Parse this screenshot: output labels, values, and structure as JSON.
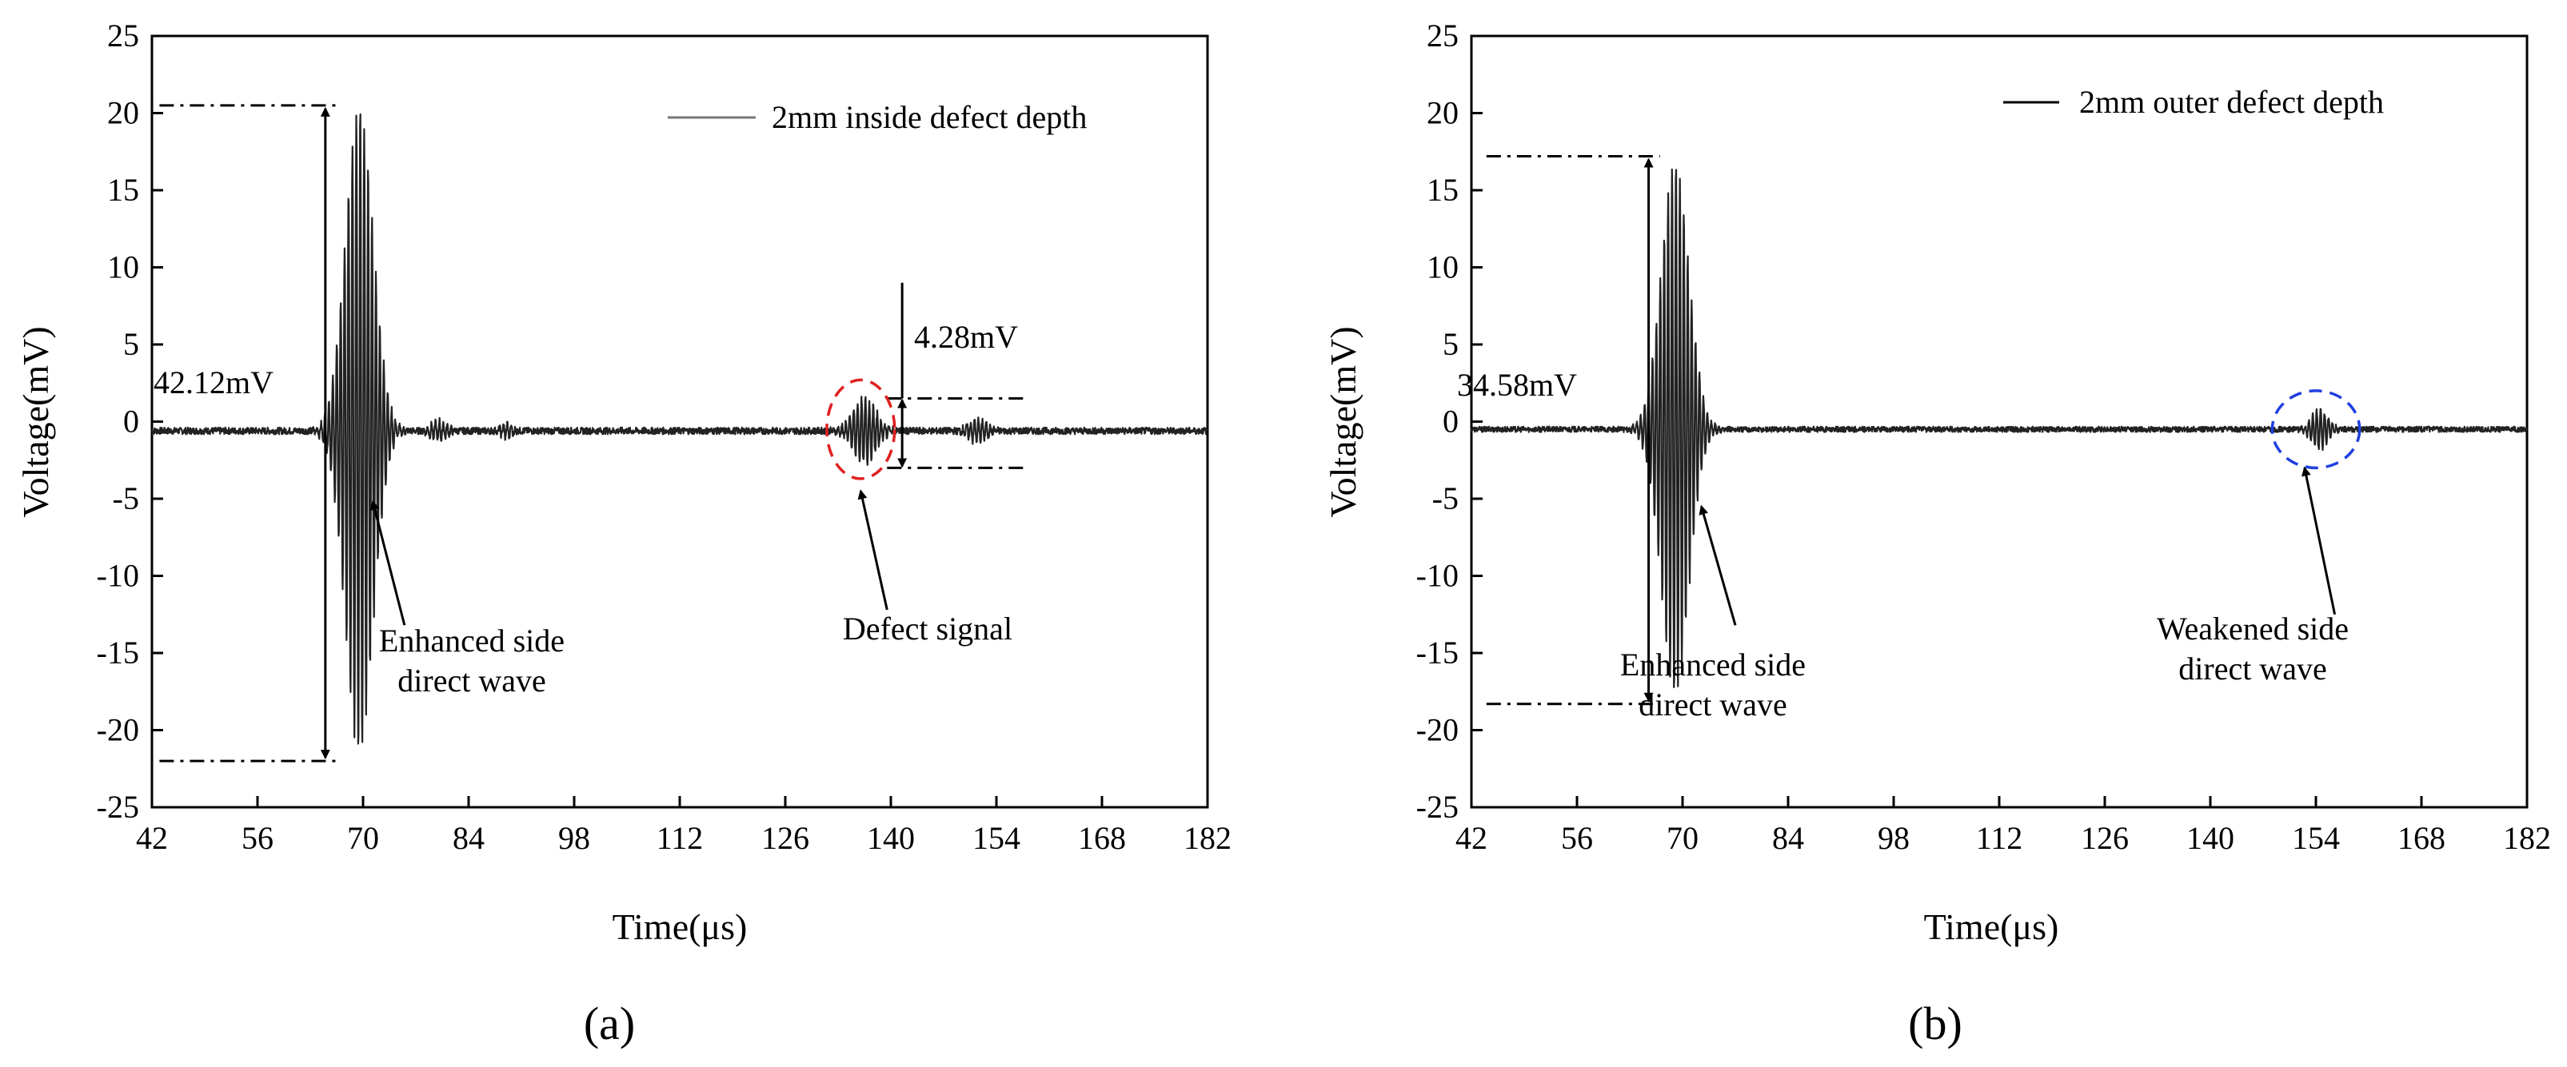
{
  "figure": {
    "panels": [
      {
        "label": "(a)"
      },
      {
        "label": "(b)"
      }
    ]
  },
  "chart_data": [
    {
      "type": "line",
      "panel": "(a)",
      "xlabel": "Time(μs)",
      "ylabel": "Voltage(mV)",
      "xlim": [
        42,
        182
      ],
      "ylim": [
        -25,
        25
      ],
      "xticks": [
        42,
        56,
        70,
        84,
        98,
        112,
        126,
        140,
        154,
        168,
        182
      ],
      "yticks": [
        25,
        20,
        15,
        10,
        5,
        0,
        -5,
        -10,
        -15,
        -20,
        -25
      ],
      "legend": {
        "label": "2mm inside defect depth",
        "position": "top-right"
      },
      "series": [
        {
          "name": "2mm inside defect depth",
          "color": "#222222",
          "baseline": -0.6,
          "noise": 0.22,
          "packets": [
            {
              "center": 69.5,
              "width": 2.6,
              "amplitude": 21.0,
              "period": 0.52
            },
            {
              "center": 80.0,
              "width": 1.4,
              "amplitude": 0.7,
              "period": 0.52
            },
            {
              "center": 89.0,
              "width": 1.0,
              "amplitude": 0.5,
              "period": 0.52
            },
            {
              "center": 136.5,
              "width": 2.2,
              "amplitude": 2.1,
              "period": 0.52
            },
            {
              "center": 151.5,
              "width": 1.6,
              "amplitude": 0.8,
              "period": 0.52
            }
          ]
        }
      ],
      "annotations": {
        "peak_to_peak": {
          "text": "42.12mV",
          "top": 20.5,
          "bottom": -22.0,
          "x_start": 43.0,
          "x_end": 66.5,
          "arrow_x": 65.0
        },
        "defect_amplitude": {
          "text": "4.28mV",
          "top": 1.5,
          "bottom": -3.0,
          "x_start": 139.5,
          "x_end": 158.0,
          "arrow_x": 141.5,
          "bar_top": 9.0
        },
        "circle": {
          "cx": 136.0,
          "cy": -0.5,
          "rx": 4.5,
          "ry": 3.2,
          "color": "#e02020"
        },
        "arrows": [
          {
            "text_lines": [
              "Enhanced side",
              "direct wave"
            ],
            "from": [
              75.5,
              -13.2
            ],
            "to": [
              71.3,
              -5.2
            ]
          },
          {
            "text_lines": [
              "Defect signal"
            ],
            "from": [
              139.5,
              -12.2
            ],
            "to": [
              136.0,
              -4.5
            ]
          }
        ]
      }
    },
    {
      "type": "line",
      "panel": "(b)",
      "xlabel": "Time(μs)",
      "ylabel": "Voltage(mV)",
      "xlim": [
        42,
        182
      ],
      "ylim": [
        -25,
        25
      ],
      "xticks": [
        42,
        56,
        70,
        84,
        98,
        112,
        126,
        140,
        154,
        168,
        182
      ],
      "yticks": [
        25,
        20,
        15,
        10,
        5,
        0,
        -5,
        -10,
        -15,
        -20,
        -25
      ],
      "legend": {
        "label": "2mm outer defect depth",
        "position": "top-right"
      },
      "series": [
        {
          "name": "2mm outer defect depth",
          "color": "#222222",
          "baseline": -0.5,
          "noise": 0.18,
          "packets": [
            {
              "center": 69.0,
              "width": 2.6,
              "amplitude": 17.2,
              "period": 0.52
            },
            {
              "center": 154.5,
              "width": 1.6,
              "amplitude": 1.3,
              "period": 0.52
            }
          ]
        }
      ],
      "annotations": {
        "peak_to_peak": {
          "text": "34.58mV",
          "top": 17.2,
          "bottom": -18.3,
          "x_start": 44.0,
          "x_end": 67.0,
          "arrow_x": 65.5
        },
        "circle": {
          "cx": 154.0,
          "cy": -0.5,
          "rx": 5.8,
          "ry": 2.5,
          "color": "#1f3fe0"
        },
        "arrows": [
          {
            "text_lines": [
              "Enhanced side",
              "direct wave"
            ],
            "from": [
              77.0,
              -13.2
            ],
            "to": [
              72.5,
              -5.5
            ]
          },
          {
            "text_lines": [
              "Weakened side",
              "direct wave"
            ],
            "from": [
              156.5,
              -12.5
            ],
            "to": [
              152.5,
              -3.0
            ]
          }
        ]
      }
    }
  ]
}
